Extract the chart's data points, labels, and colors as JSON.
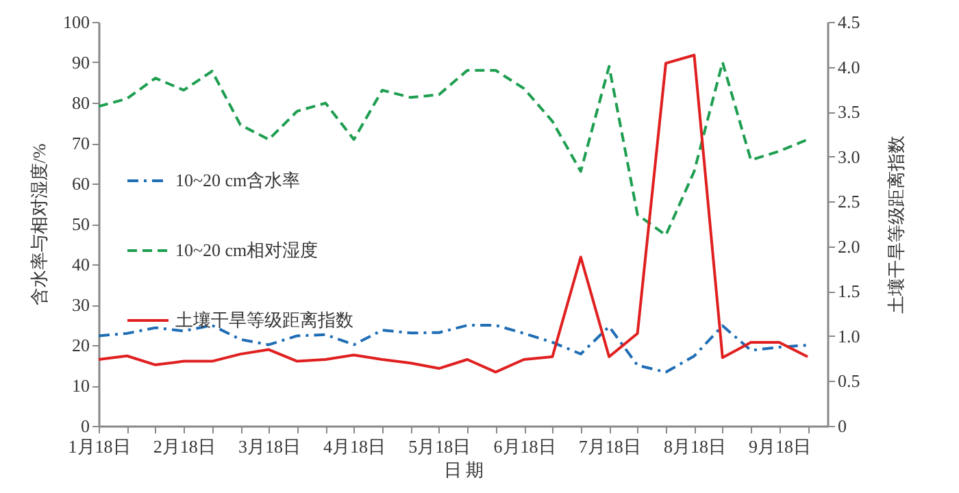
{
  "chart_data": {
    "type": "line",
    "xlabel": "日 期",
    "ylabel": "含水率与相对湿度/%",
    "y2label": "土壤干旱等级距离指数",
    "categories": [
      "1月18日",
      null,
      null,
      "2月18日",
      null,
      null,
      "3月18日",
      null,
      null,
      "4月18日",
      null,
      null,
      "5月18日",
      null,
      null,
      "6月18日",
      null,
      null,
      "7月18日",
      null,
      null,
      "8月18日",
      null,
      null,
      "9月18日",
      null
    ],
    "series": [
      {
        "name": "10~20 cm含水率",
        "color": "#1f6db5",
        "line_style": "dashdot",
        "values": [
          22.3,
          22.9,
          24.3,
          23.5,
          24.9,
          21.4,
          20.1,
          22.3,
          22.6,
          20.1,
          23.7,
          23,
          23.1,
          24.9,
          24.9,
          22.9,
          20.7,
          17.8,
          24.6,
          15,
          13.3,
          17.3,
          24.8,
          18.7,
          19.5,
          20
        ]
      },
      {
        "name": "10~20 cm相对湿度",
        "color": "#1e9e50",
        "line_style": "dashed",
        "values": [
          79.1,
          81,
          86.1,
          83.1,
          87.8,
          74.5,
          70.9,
          77.9,
          79.9,
          70.9,
          83.1,
          81.3,
          82,
          88,
          88,
          83.5,
          75.4,
          63,
          89,
          52.3,
          47.2,
          63,
          90,
          65.8,
          68,
          70.9
        ]
      },
      {
        "name": "土壤干旱等级距离指数",
        "color": "#e02020",
        "line_style": "solid",
        "axis": "y2",
        "values": [
          0.74,
          0.78,
          0.68,
          0.72,
          0.72,
          0.8,
          0.85,
          0.72,
          0.74,
          0.79,
          0.74,
          0.7,
          0.64,
          0.74,
          0.6,
          0.74,
          0.77,
          1.88,
          0.77,
          1.03,
          4.04,
          4.13,
          0.76,
          0.93,
          0.93,
          0.77
        ]
      }
    ],
    "ylim": [
      0,
      100
    ],
    "yticks": [
      0,
      10,
      20,
      30,
      40,
      50,
      60,
      70,
      80,
      90,
      100
    ],
    "y2lim": [
      0,
      4.5
    ],
    "y2ticks": [
      0,
      0.5,
      {
        "value": 1,
        "label": "1.0"
      },
      1.5,
      {
        "value": 2,
        "label": "2.0"
      },
      2.5,
      {
        "value": 3,
        "label": "3.0"
      },
      3.5,
      {
        "value": 4,
        "label": "4.0"
      },
      4.5
    ],
    "grid": false,
    "legend": "left",
    "marker": "none"
  }
}
